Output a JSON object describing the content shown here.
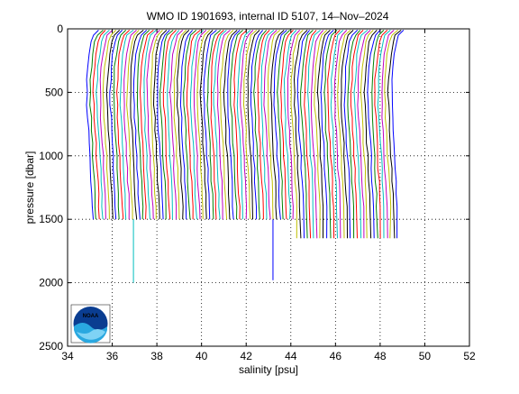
{
  "chart_data": {
    "type": "line",
    "title": "WMO ID 1901693, internal ID 5107, 14–Nov–2024",
    "xlabel": "salinity [psu]",
    "ylabel": "pressure [dbar]",
    "xlim": [
      34,
      52
    ],
    "ylim": [
      0,
      2500
    ],
    "y_reversed": true,
    "x_ticks": [
      34,
      36,
      38,
      40,
      42,
      44,
      46,
      48,
      50,
      52
    ],
    "y_ticks": [
      0,
      500,
      1000,
      1500,
      2000,
      2500
    ],
    "x_tick_labels": [
      "34",
      "36",
      "38",
      "40",
      "42",
      "44",
      "46",
      "48",
      "50",
      "52"
    ],
    "y_tick_labels": [
      "0",
      "500",
      "1000",
      "1500",
      "2000",
      "2500"
    ],
    "grid": true,
    "grid_style": "dotted",
    "legend": "none",
    "colors_cycle": [
      "#0000ff",
      "#008000",
      "#ff0000",
      "#00bfbf",
      "#bf00bf",
      "#bfbf00",
      "#000000"
    ],
    "profile_offset_step": 0.15,
    "profile_count": 92,
    "profile_template": {
      "pressure": [
        10,
        50,
        100,
        200,
        300,
        400,
        500,
        600,
        700,
        800,
        900,
        1000,
        1100,
        1200,
        1300,
        1400,
        1500
      ],
      "salinity": [
        35.42,
        35.18,
        35.08,
        34.98,
        34.92,
        34.88,
        34.86,
        34.87,
        34.9,
        34.93,
        34.96,
        34.99,
        35.02,
        35.05,
        35.08,
        35.1,
        35.12
      ]
    },
    "deep_profiles": [
      {
        "start_x": 36.95,
        "max_pressure": 2000
      },
      {
        "start_x": 43.2,
        "max_pressure": 1980
      }
    ],
    "long_profiles_max_pressure": 1650,
    "logo": "NOAA"
  }
}
